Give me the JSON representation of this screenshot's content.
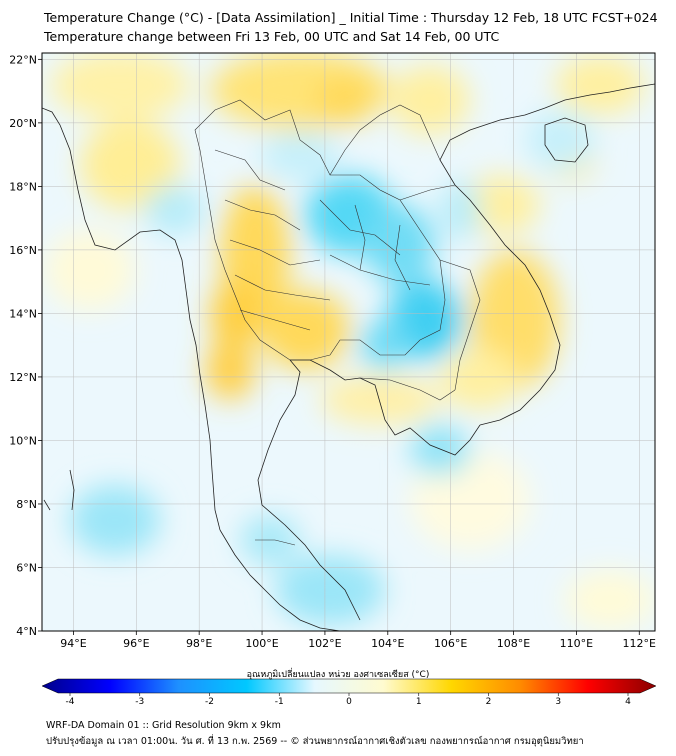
{
  "title_line1": "Temperature Change (°C) - [Data Assimilation] _ Initial Time : Thursday 12 Feb, 18 UTC FCST+024",
  "title_line2": "Temperature change between Fri 13 Feb, 00 UTC and Sat 14 Feb, 00 UTC",
  "map": {
    "lon_range": [
      93.0,
      112.5
    ],
    "lat_range": [
      4.0,
      22.2
    ],
    "lon_ticks": [
      "94°E",
      "96°E",
      "98°E",
      "100°E",
      "102°E",
      "104°E",
      "106°E",
      "108°E",
      "110°E",
      "112°E"
    ],
    "lat_ticks": [
      "22°N",
      "20°N",
      "18°N",
      "16°N",
      "14°N",
      "12°N",
      "10°N",
      "8°N",
      "6°N",
      "4°N"
    ],
    "grid": true
  },
  "colorbar": {
    "title": "อุณหภูมิเปลี่ยนแปลง หน่วย องศาเซลเซียส (°C)",
    "min": -4,
    "max": 4,
    "tick_labels": [
      "-4",
      "-3",
      "-2",
      "-1",
      "0",
      "1",
      "2",
      "3",
      "4"
    ],
    "colors": [
      "#00008b",
      "#0000ff",
      "#1e90ff",
      "#00c8ff",
      "#e6f8ff",
      "#fffbd0",
      "#ffd700",
      "#ff8c00",
      "#ff0000",
      "#8b0000"
    ]
  },
  "footer_line1": "WRF-DA Domain 01 :: Grid Resolution 9km x 9km",
  "footer_line2": "ปรับปรุงข้อมูล ณ เวลา 01:00น. วัน ศ. ที่ 13 ก.พ. 2569 -- © ส่วนพยากรณ์อากาศเชิงตัวเลข กองพยากรณ์อากาศ กรมอุตุนิยมวิทยา"
}
